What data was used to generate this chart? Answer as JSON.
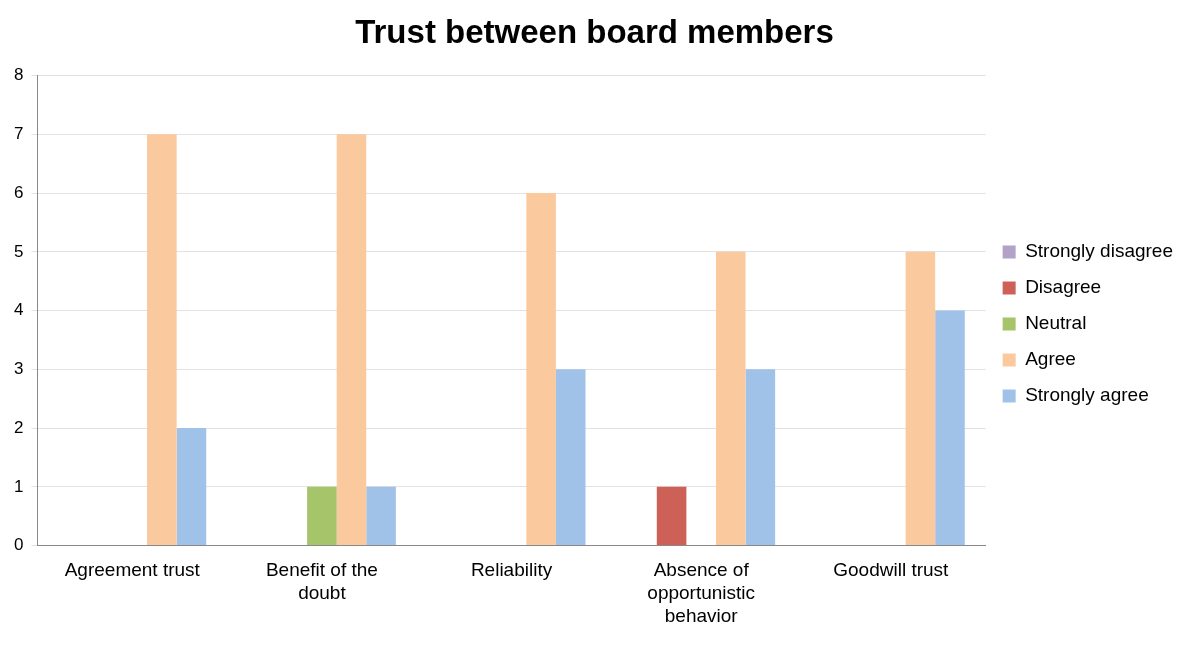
{
  "chart_data": {
    "type": "bar",
    "title": "Trust between board members",
    "categories": [
      "Agreement trust",
      "Benefit of the doubt",
      "Reliability",
      "Absence of opportunistic behavior",
      "Goodwill trust"
    ],
    "series": [
      {
        "name": "Strongly disagree",
        "color": "#b3a2c7",
        "values": [
          0,
          0,
          0,
          0,
          0
        ]
      },
      {
        "name": "Disagree",
        "color": "#cd6157",
        "values": [
          0,
          0,
          0,
          1,
          0
        ]
      },
      {
        "name": "Neutral",
        "color": "#a6c46a",
        "values": [
          0,
          1,
          0,
          0,
          0
        ]
      },
      {
        "name": "Agree",
        "color": "#fbc99e",
        "values": [
          7,
          7,
          6,
          5,
          5
        ]
      },
      {
        "name": "Strongly agree",
        "color": "#a0c1e8",
        "values": [
          2,
          1,
          3,
          3,
          4
        ]
      }
    ],
    "ylim": [
      0,
      8
    ],
    "yticks": [
      0,
      1,
      2,
      3,
      4,
      5,
      6,
      7,
      8
    ],
    "grid": "y",
    "legend": "right"
  }
}
